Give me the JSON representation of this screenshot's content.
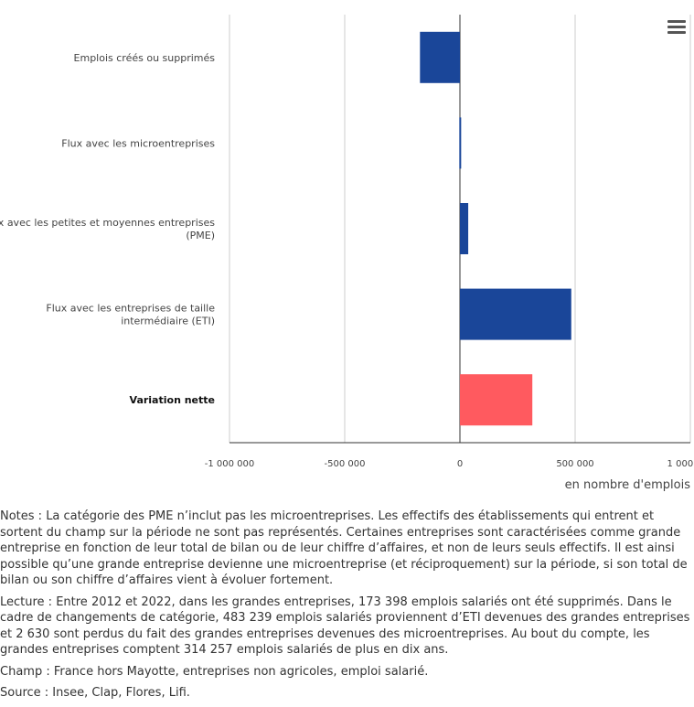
{
  "chart_data": {
    "type": "bar",
    "orientation": "horizontal",
    "categories": [
      "Emplois créés ou supprimés",
      "Flux avec les microentreprises",
      "Flux avec les petites et moyennes entreprises (PME)",
      "Flux avec les entreprises de taille intermédiaire (ETI)",
      "Variation nette"
    ],
    "category_lines": [
      [
        "Emplois créés ou supprimés"
      ],
      [
        "Flux avec les microentreprises"
      ],
      [
        "Flux avec les petites et moyennes entreprises",
        "(PME)"
      ],
      [
        "Flux avec les entreprises de taille",
        "intermédiaire (ETI)"
      ],
      [
        "Variation nette"
      ]
    ],
    "values": [
      -173398,
      -2630,
      36000,
      483239,
      314257
    ],
    "colors": [
      "#1a4699",
      "#1a4699",
      "#1a4699",
      "#1a4699",
      "#ff5a5f"
    ],
    "xlim": [
      -1000000,
      1000000
    ],
    "ticks": [
      -1000000,
      -500000,
      0,
      500000,
      1000000
    ],
    "tick_labels": [
      "-1 000 000",
      "-500 000",
      "0",
      "500 000",
      "1 000 000"
    ],
    "xlabel": "en nombre d'emplois",
    "title": ""
  },
  "menu": {
    "icon": "hamburger-menu-icon"
  },
  "notes": {
    "notes_text": "Notes : La catégorie des PME n’inclut pas les microentreprises. Les effectifs des établissements qui entrent et sortent du champ sur la période ne sont pas représentés. Certaines entreprises sont caractérisées comme grande entreprise en fonction de leur total de bilan ou de leur chiffre d’affaires, et non de leurs seuls effectifs. Il est ainsi possible qu’une grande entreprise devienne une microentreprise (et réciproquement) sur la période, si son total de bilan ou son chiffre d’affaires vient à évoluer fortement.",
    "lecture_text": "Lecture : Entre 2012 et 2022, dans les grandes entreprises, 173 398 emplois salariés ont été supprimés. Dans le cadre de changements de catégorie, 483 239 emplois salariés proviennent d’ETI devenues des grandes entreprises et 2 630 sont perdus du fait des grandes entreprises devenues des microentreprises. Au bout du compte, les grandes entreprises comptent 314 257 emplois salariés de plus en dix ans.",
    "champ_text": "Champ : France hors Mayotte, entreprises non agricoles, emploi salarié.",
    "source_text": "Source : Insee, Clap, Flores, Lifi."
  }
}
